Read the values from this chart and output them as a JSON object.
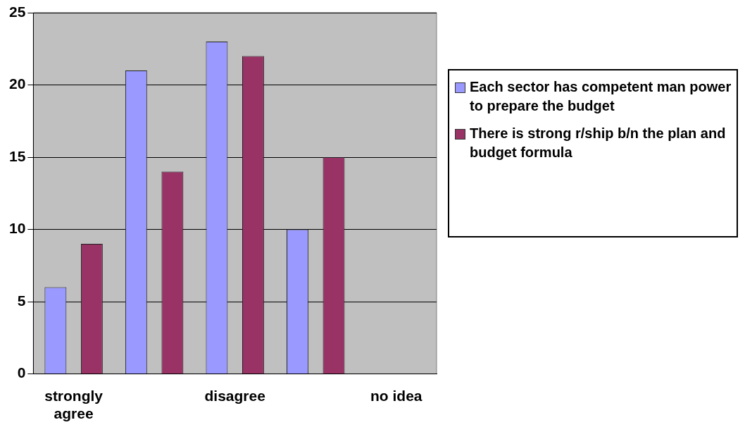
{
  "chart_data": {
    "type": "bar",
    "categories": [
      "strongly agree",
      null,
      "disagree",
      null,
      "no idea"
    ],
    "series": [
      {
        "name": "Each sector has competent man power to prepare the budget",
        "color": "#9999ff",
        "values": [
          6,
          21,
          23,
          10,
          0
        ]
      },
      {
        "name": "There is strong r/ship b/n the plan and budget formula",
        "color": "#993366",
        "values": [
          9,
          14,
          22,
          15,
          0
        ]
      }
    ],
    "ylim": [
      0,
      25
    ],
    "yticks": [
      0,
      5,
      10,
      15,
      20,
      25
    ],
    "grid": "y",
    "legend": "right"
  }
}
